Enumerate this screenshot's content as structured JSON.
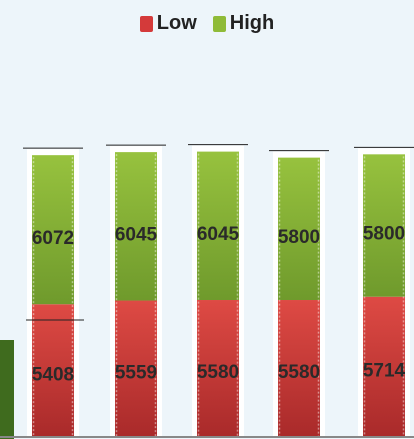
{
  "chart_data": {
    "type": "bar",
    "stacked": true,
    "categories": [
      "",
      "",
      "",
      "",
      ""
    ],
    "series": [
      {
        "name": "Low",
        "color": "#d43a3a",
        "values": [
          5408,
          5559,
          5580,
          5580,
          5714
        ]
      },
      {
        "name": "High",
        "color": "#8fbb38",
        "values": [
          6072,
          6045,
          6045,
          5800,
          5800
        ]
      }
    ],
    "legend_position": "top-center",
    "show_data_labels": true,
    "grid": false
  }
}
